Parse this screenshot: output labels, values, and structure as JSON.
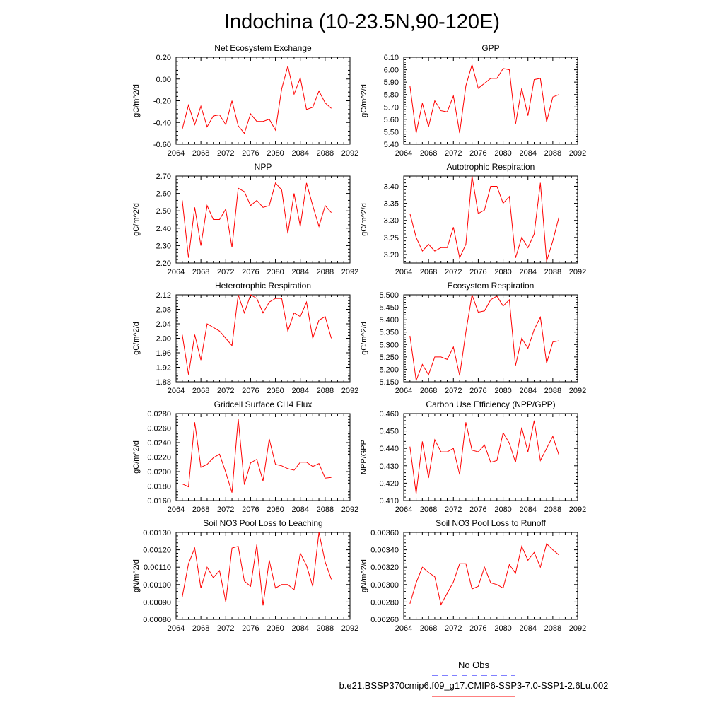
{
  "title": "Indochina (10-23.5N,90-120E)",
  "colors": {
    "model": "#ff0000",
    "obs": "#0000ff"
  },
  "legend": {
    "obs_label": "No Obs",
    "model_label": "b.e21.BSSP370cmip6.f09_g17.CMIP6-SSP3-7.0-SSP1-2.6Lu.002"
  },
  "chart_data": [
    {
      "type": "line",
      "title": "Net Ecosystem Exchange",
      "ylabel": "gC/m^2/d",
      "xlim": [
        2064,
        2092
      ],
      "ylim": [
        -0.6,
        0.2
      ],
      "xticks": [
        "2064",
        "2068",
        "2072",
        "2076",
        "2080",
        "2084",
        "2088",
        "2092"
      ],
      "yticks": [
        "-0.60",
        "-0.40",
        "-0.20",
        "0.00",
        "0.20"
      ],
      "x": [
        2065,
        2066,
        2067,
        2068,
        2069,
        2070,
        2071,
        2072,
        2073,
        2074,
        2075,
        2076,
        2077,
        2078,
        2079,
        2080,
        2081,
        2082,
        2083,
        2084,
        2085,
        2086,
        2087,
        2088,
        2089
      ],
      "values": [
        -0.46,
        -0.24,
        -0.42,
        -0.25,
        -0.44,
        -0.34,
        -0.33,
        -0.42,
        -0.2,
        -0.43,
        -0.5,
        -0.32,
        -0.39,
        -0.39,
        -0.37,
        -0.47,
        -0.09,
        0.12,
        -0.14,
        0.01,
        -0.28,
        -0.26,
        -0.11,
        -0.22,
        -0.27
      ]
    },
    {
      "type": "line",
      "title": "GPP",
      "ylabel": "gC/m^2/d",
      "xlim": [
        2064,
        2092
      ],
      "ylim": [
        5.4,
        6.1
      ],
      "xticks": [
        "2064",
        "2068",
        "2072",
        "2076",
        "2080",
        "2084",
        "2088",
        "2092"
      ],
      "yticks": [
        "5.40",
        "5.50",
        "5.60",
        "5.70",
        "5.80",
        "5.90",
        "6.00",
        "6.10"
      ],
      "x": [
        2065,
        2066,
        2067,
        2068,
        2069,
        2070,
        2071,
        2072,
        2073,
        2074,
        2075,
        2076,
        2077,
        2078,
        2079,
        2080,
        2081,
        2082,
        2083,
        2084,
        2085,
        2086,
        2087,
        2088,
        2089
      ],
      "values": [
        5.87,
        5.49,
        5.73,
        5.54,
        5.75,
        5.67,
        5.66,
        5.79,
        5.49,
        5.87,
        6.04,
        5.85,
        5.89,
        5.93,
        5.93,
        6.01,
        6.0,
        5.56,
        5.85,
        5.63,
        5.92,
        5.93,
        5.58,
        5.78,
        5.8
      ]
    },
    {
      "type": "line",
      "title": "NPP",
      "ylabel": "gC/m^2/d",
      "xlim": [
        2064,
        2092
      ],
      "ylim": [
        2.2,
        2.7
      ],
      "xticks": [
        "2064",
        "2068",
        "2072",
        "2076",
        "2080",
        "2084",
        "2088",
        "2092"
      ],
      "yticks": [
        "2.20",
        "2.30",
        "2.40",
        "2.50",
        "2.60",
        "2.70"
      ],
      "x": [
        2065,
        2066,
        2067,
        2068,
        2069,
        2070,
        2071,
        2072,
        2073,
        2074,
        2075,
        2076,
        2077,
        2078,
        2079,
        2080,
        2081,
        2082,
        2083,
        2084,
        2085,
        2086,
        2087,
        2088,
        2089
      ],
      "values": [
        2.56,
        2.23,
        2.52,
        2.3,
        2.53,
        2.45,
        2.45,
        2.51,
        2.29,
        2.63,
        2.61,
        2.53,
        2.56,
        2.52,
        2.53,
        2.66,
        2.62,
        2.37,
        2.6,
        2.41,
        2.66,
        2.53,
        2.41,
        2.53,
        2.49
      ]
    },
    {
      "type": "line",
      "title": "Autotrophic Respiration",
      "ylabel": "gC/m^2/d",
      "xlim": [
        2064,
        2092
      ],
      "ylim": [
        3.175,
        3.43
      ],
      "xticks": [
        "2064",
        "2068",
        "2072",
        "2076",
        "2080",
        "2084",
        "2088",
        "2092"
      ],
      "yticks": [
        "3.20",
        "3.25",
        "3.30",
        "3.35",
        "3.40"
      ],
      "x": [
        2065,
        2066,
        2067,
        2068,
        2069,
        2070,
        2071,
        2072,
        2073,
        2074,
        2075,
        2076,
        2077,
        2078,
        2079,
        2080,
        2081,
        2082,
        2083,
        2084,
        2085,
        2086,
        2087,
        2088,
        2089
      ],
      "values": [
        3.32,
        3.25,
        3.21,
        3.23,
        3.21,
        3.22,
        3.22,
        3.28,
        3.19,
        3.23,
        3.43,
        3.32,
        3.33,
        3.4,
        3.4,
        3.35,
        3.37,
        3.19,
        3.25,
        3.22,
        3.26,
        3.41,
        3.18,
        3.24,
        3.31
      ]
    },
    {
      "type": "line",
      "title": "Heterotrophic Respiration",
      "ylabel": "gC/m^2/d",
      "xlim": [
        2064,
        2092
      ],
      "ylim": [
        1.88,
        2.12
      ],
      "xticks": [
        "2064",
        "2068",
        "2072",
        "2076",
        "2080",
        "2084",
        "2088",
        "2092"
      ],
      "yticks": [
        "1.88",
        "1.92",
        "1.96",
        "2.00",
        "2.04",
        "2.08",
        "2.12"
      ],
      "x": [
        2065,
        2066,
        2067,
        2068,
        2069,
        2070,
        2071,
        2072,
        2073,
        2074,
        2075,
        2076,
        2077,
        2078,
        2079,
        2080,
        2081,
        2082,
        2083,
        2084,
        2085,
        2086,
        2087,
        2088,
        2089
      ],
      "values": [
        2.01,
        1.9,
        2.01,
        1.94,
        2.04,
        2.03,
        2.02,
        2.0,
        1.98,
        2.12,
        2.07,
        2.12,
        2.11,
        2.07,
        2.1,
        2.11,
        2.11,
        2.02,
        2.07,
        2.06,
        2.1,
        2.0,
        2.05,
        2.06,
        2.0
      ]
    },
    {
      "type": "line",
      "title": "Ecosystem Respiration",
      "ylabel": "gC/m^2/d",
      "xlim": [
        2064,
        2092
      ],
      "ylim": [
        5.15,
        5.5
      ],
      "xticks": [
        "2064",
        "2068",
        "2072",
        "2076",
        "2080",
        "2084",
        "2088",
        "2092"
      ],
      "yticks": [
        "5.150",
        "5.200",
        "5.250",
        "5.300",
        "5.350",
        "5.400",
        "5.450",
        "5.500"
      ],
      "x": [
        2065,
        2066,
        2067,
        2068,
        2069,
        2070,
        2071,
        2072,
        2073,
        2074,
        2075,
        2076,
        2077,
        2078,
        2079,
        2080,
        2081,
        2082,
        2083,
        2084,
        2085,
        2086,
        2087,
        2088,
        2089
      ],
      "values": [
        5.335,
        5.155,
        5.22,
        5.178,
        5.25,
        5.25,
        5.24,
        5.29,
        5.175,
        5.35,
        5.5,
        5.43,
        5.435,
        5.48,
        5.495,
        5.455,
        5.48,
        5.215,
        5.325,
        5.285,
        5.36,
        5.41,
        5.225,
        5.31,
        5.315
      ]
    },
    {
      "type": "line",
      "title": "Gridcell Surface CH4 Flux",
      "ylabel": "gC/m^2/d",
      "xlim": [
        2064,
        2092
      ],
      "ylim": [
        0.016,
        0.028
      ],
      "xticks": [
        "2064",
        "2068",
        "2072",
        "2076",
        "2080",
        "2084",
        "2088",
        "2092"
      ],
      "yticks": [
        "0.0160",
        "0.0180",
        "0.0200",
        "0.0220",
        "0.0240",
        "0.0260",
        "0.0280"
      ],
      "x": [
        2065,
        2066,
        2067,
        2068,
        2069,
        2070,
        2071,
        2072,
        2073,
        2074,
        2075,
        2076,
        2077,
        2078,
        2079,
        2080,
        2081,
        2082,
        2083,
        2084,
        2085,
        2086,
        2087,
        2088,
        2089
      ],
      "values": [
        0.0183,
        0.0179,
        0.0268,
        0.0206,
        0.021,
        0.0219,
        0.0224,
        0.0199,
        0.0171,
        0.0273,
        0.0182,
        0.0212,
        0.0217,
        0.0187,
        0.0245,
        0.021,
        0.0208,
        0.0204,
        0.0202,
        0.0213,
        0.0213,
        0.0207,
        0.0211,
        0.0191,
        0.0192
      ]
    },
    {
      "type": "line",
      "title": "Carbon Use Efficiency (NPP/GPP)",
      "ylabel": "NPP/GPP",
      "xlim": [
        2064,
        2092
      ],
      "ylim": [
        0.41,
        0.46
      ],
      "xticks": [
        "2064",
        "2068",
        "2072",
        "2076",
        "2080",
        "2084",
        "2088",
        "2092"
      ],
      "yticks": [
        "0.410",
        "0.420",
        "0.430",
        "0.440",
        "0.450",
        "0.460"
      ],
      "x": [
        2065,
        2066,
        2067,
        2068,
        2069,
        2070,
        2071,
        2072,
        2073,
        2074,
        2075,
        2076,
        2077,
        2078,
        2079,
        2080,
        2081,
        2082,
        2083,
        2084,
        2085,
        2086,
        2087,
        2088,
        2089
      ],
      "values": [
        0.441,
        0.414,
        0.444,
        0.423,
        0.445,
        0.438,
        0.438,
        0.44,
        0.425,
        0.455,
        0.439,
        0.438,
        0.442,
        0.432,
        0.433,
        0.449,
        0.443,
        0.432,
        0.452,
        0.438,
        0.456,
        0.433,
        0.44,
        0.447,
        0.436
      ]
    },
    {
      "type": "line",
      "title": "Soil NO3 Pool Loss to Leaching",
      "ylabel": "gN/m^2/d",
      "xlim": [
        2064,
        2092
      ],
      "ylim": [
        0.0008,
        0.0013
      ],
      "xticks": [
        "2064",
        "2068",
        "2072",
        "2076",
        "2080",
        "2084",
        "2088",
        "2092"
      ],
      "yticks": [
        "0.00080",
        "0.00090",
        "0.00100",
        "0.00110",
        "0.00120",
        "0.00130"
      ],
      "x": [
        2065,
        2066,
        2067,
        2068,
        2069,
        2070,
        2071,
        2072,
        2073,
        2074,
        2075,
        2076,
        2077,
        2078,
        2079,
        2080,
        2081,
        2082,
        2083,
        2084,
        2085,
        2086,
        2087,
        2088,
        2089
      ],
      "values": [
        0.00093,
        0.00112,
        0.00121,
        0.00098,
        0.0011,
        0.00104,
        0.00108,
        0.0009,
        0.00121,
        0.00122,
        0.00102,
        0.00099,
        0.00123,
        0.00088,
        0.00114,
        0.00098,
        0.001,
        0.001,
        0.00097,
        0.00118,
        0.00111,
        0.00099,
        0.0013,
        0.00113,
        0.00103
      ]
    },
    {
      "type": "line",
      "title": "Soil NO3 Pool Loss to Runoff",
      "ylabel": "gN/m^2/d",
      "xlim": [
        2064,
        2092
      ],
      "ylim": [
        0.0026,
        0.0036
      ],
      "xticks": [
        "2064",
        "2068",
        "2072",
        "2076",
        "2080",
        "2084",
        "2088",
        "2092"
      ],
      "yticks": [
        "0.00260",
        "0.00280",
        "0.00300",
        "0.00320",
        "0.00340",
        "0.00360"
      ],
      "x": [
        2065,
        2066,
        2067,
        2068,
        2069,
        2070,
        2071,
        2072,
        2073,
        2074,
        2075,
        2076,
        2077,
        2078,
        2079,
        2080,
        2081,
        2082,
        2083,
        2084,
        2085,
        2086,
        2087,
        2088,
        2089
      ],
      "values": [
        0.00278,
        0.00302,
        0.0032,
        0.00314,
        0.00309,
        0.00277,
        0.0029,
        0.00303,
        0.00324,
        0.00324,
        0.00295,
        0.00298,
        0.0032,
        0.00302,
        0.003,
        0.00296,
        0.00323,
        0.00313,
        0.00344,
        0.00328,
        0.00337,
        0.0032,
        0.00347,
        0.0034,
        0.00334
      ]
    }
  ]
}
